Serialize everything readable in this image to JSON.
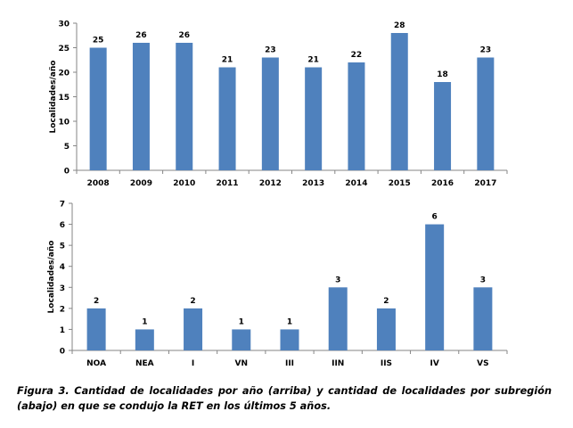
{
  "chart_data": [
    {
      "type": "bar",
      "title": "",
      "xlabel": "",
      "ylabel": "Localidades/año",
      "categories": [
        "2008",
        "2009",
        "2010",
        "2011",
        "2012",
        "2013",
        "2014",
        "2015",
        "2016",
        "2017"
      ],
      "values": [
        25,
        26,
        26,
        21,
        23,
        21,
        22,
        28,
        18,
        23
      ],
      "data_labels": [
        "25",
        "26",
        "26",
        "21",
        "23",
        "21",
        "22",
        "28",
        "18",
        "23"
      ],
      "ylim": [
        0,
        30
      ],
      "yticks": [
        0,
        5,
        10,
        15,
        20,
        25,
        30
      ],
      "ytick_labels": [
        "0",
        "5",
        "10",
        "15",
        "20",
        "25",
        "30"
      ],
      "grid": false,
      "legend": "none",
      "bar_color": "#4F81BD"
    },
    {
      "type": "bar",
      "title": "",
      "xlabel": "",
      "ylabel": "Localidades/año",
      "categories": [
        "NOA",
        "NEA",
        "I",
        "VN",
        "III",
        "IIN",
        "IIS",
        "IV",
        "VS"
      ],
      "values": [
        2,
        1,
        2,
        1,
        1,
        3,
        2,
        6,
        3
      ],
      "data_labels": [
        "2",
        "1",
        "2",
        "1",
        "1",
        "3",
        "2",
        "6",
        "3"
      ],
      "ylim": [
        0,
        7
      ],
      "yticks": [
        0,
        1,
        2,
        3,
        4,
        5,
        6,
        7
      ],
      "ytick_labels": [
        "0",
        "1",
        "2",
        "3",
        "4",
        "5",
        "6",
        "7"
      ],
      "grid": false,
      "legend": "none",
      "bar_color": "#4F81BD"
    }
  ],
  "caption": {
    "text": "Figura 3. Cantidad de localidades por año (arriba) y cantidad de localidades por subregión (abajo) en que se condujo la RET en los últimos 5 años."
  }
}
